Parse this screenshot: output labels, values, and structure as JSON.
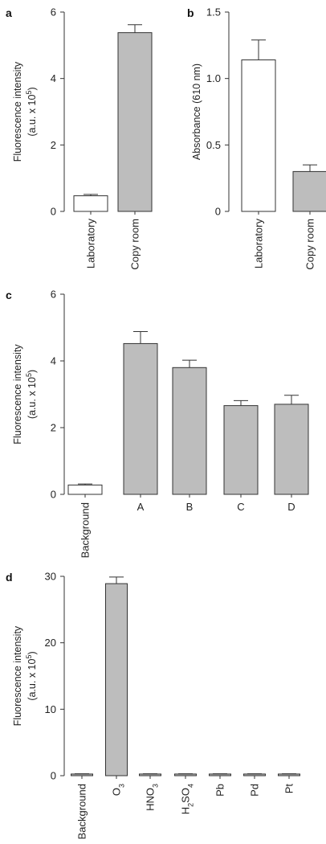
{
  "chart_data": [
    {
      "panel_label": "a",
      "type": "bar",
      "ylabel_lines": [
        "Fluorescence intensity",
        "(a.u. x 10^5)"
      ],
      "ylim": [
        0,
        6
      ],
      "yticks": [
        0,
        2,
        4,
        6
      ],
      "ytick_labels": [
        "0",
        "2",
        "4",
        "6"
      ],
      "categories": [
        {
          "label": "Laboratory",
          "value": 0.47,
          "error": 0.04,
          "fill": "#ffffff"
        },
        {
          "label": "Copy room",
          "value": 5.38,
          "error": 0.24,
          "fill": "#bdbdbd"
        }
      ]
    },
    {
      "panel_label": "b",
      "type": "bar",
      "ylabel_lines": [
        "Absorbance (610 nm)"
      ],
      "ylim": [
        0,
        1.5
      ],
      "yticks": [
        0,
        0.5,
        1.0,
        1.5
      ],
      "ytick_labels": [
        "0",
        "0.5",
        "1.0",
        "1.5"
      ],
      "categories": [
        {
          "label": "Laboratory",
          "value": 1.14,
          "error": 0.15,
          "fill": "#ffffff"
        },
        {
          "label": "Copy room",
          "value": 0.3,
          "error": 0.05,
          "fill": "#bdbdbd"
        }
      ]
    },
    {
      "panel_label": "c",
      "type": "bar",
      "ylabel_lines": [
        "Fluorescence intensity",
        "(a.u. x 10^5)"
      ],
      "ylim": [
        0,
        6
      ],
      "yticks": [
        0,
        2,
        4,
        6
      ],
      "ytick_labels": [
        "0",
        "2",
        "4",
        "6"
      ],
      "categories": [
        {
          "label": "Background",
          "value": 0.28,
          "error": 0.03,
          "fill": "#ffffff"
        },
        {
          "label": "A",
          "value": 4.52,
          "error": 0.36,
          "fill": "#bdbdbd"
        },
        {
          "label": "B",
          "value": 3.8,
          "error": 0.22,
          "fill": "#bdbdbd"
        },
        {
          "label": "C",
          "value": 2.66,
          "error": 0.15,
          "fill": "#bdbdbd"
        },
        {
          "label": "D",
          "value": 2.7,
          "error": 0.27,
          "fill": "#bdbdbd"
        }
      ]
    },
    {
      "panel_label": "d",
      "type": "bar",
      "ylabel_lines": [
        "Fluorescence intensity",
        "(a.u. x 10^5)"
      ],
      "ylim": [
        0,
        30
      ],
      "yticks": [
        0,
        10,
        20,
        30
      ],
      "ytick_labels": [
        "0",
        "10",
        "20",
        "30"
      ],
      "categories": [
        {
          "label": "Background",
          "value": 0.25,
          "error": 0.03,
          "fill": "#bdbdbd"
        },
        {
          "label": "O_3",
          "value": 28.9,
          "error": 1.0,
          "fill": "#bdbdbd"
        },
        {
          "label": "HNO_3",
          "value": 0.25,
          "error": 0.03,
          "fill": "#bdbdbd"
        },
        {
          "label": "H_2SO_4",
          "value": 0.25,
          "error": 0.03,
          "fill": "#bdbdbd"
        },
        {
          "label": "Pb",
          "value": 0.25,
          "error": 0.03,
          "fill": "#bdbdbd"
        },
        {
          "label": "Pd",
          "value": 0.25,
          "error": 0.03,
          "fill": "#bdbdbd"
        },
        {
          "label": "Pt",
          "value": 0.25,
          "error": 0.03,
          "fill": "#bdbdbd"
        }
      ]
    }
  ]
}
